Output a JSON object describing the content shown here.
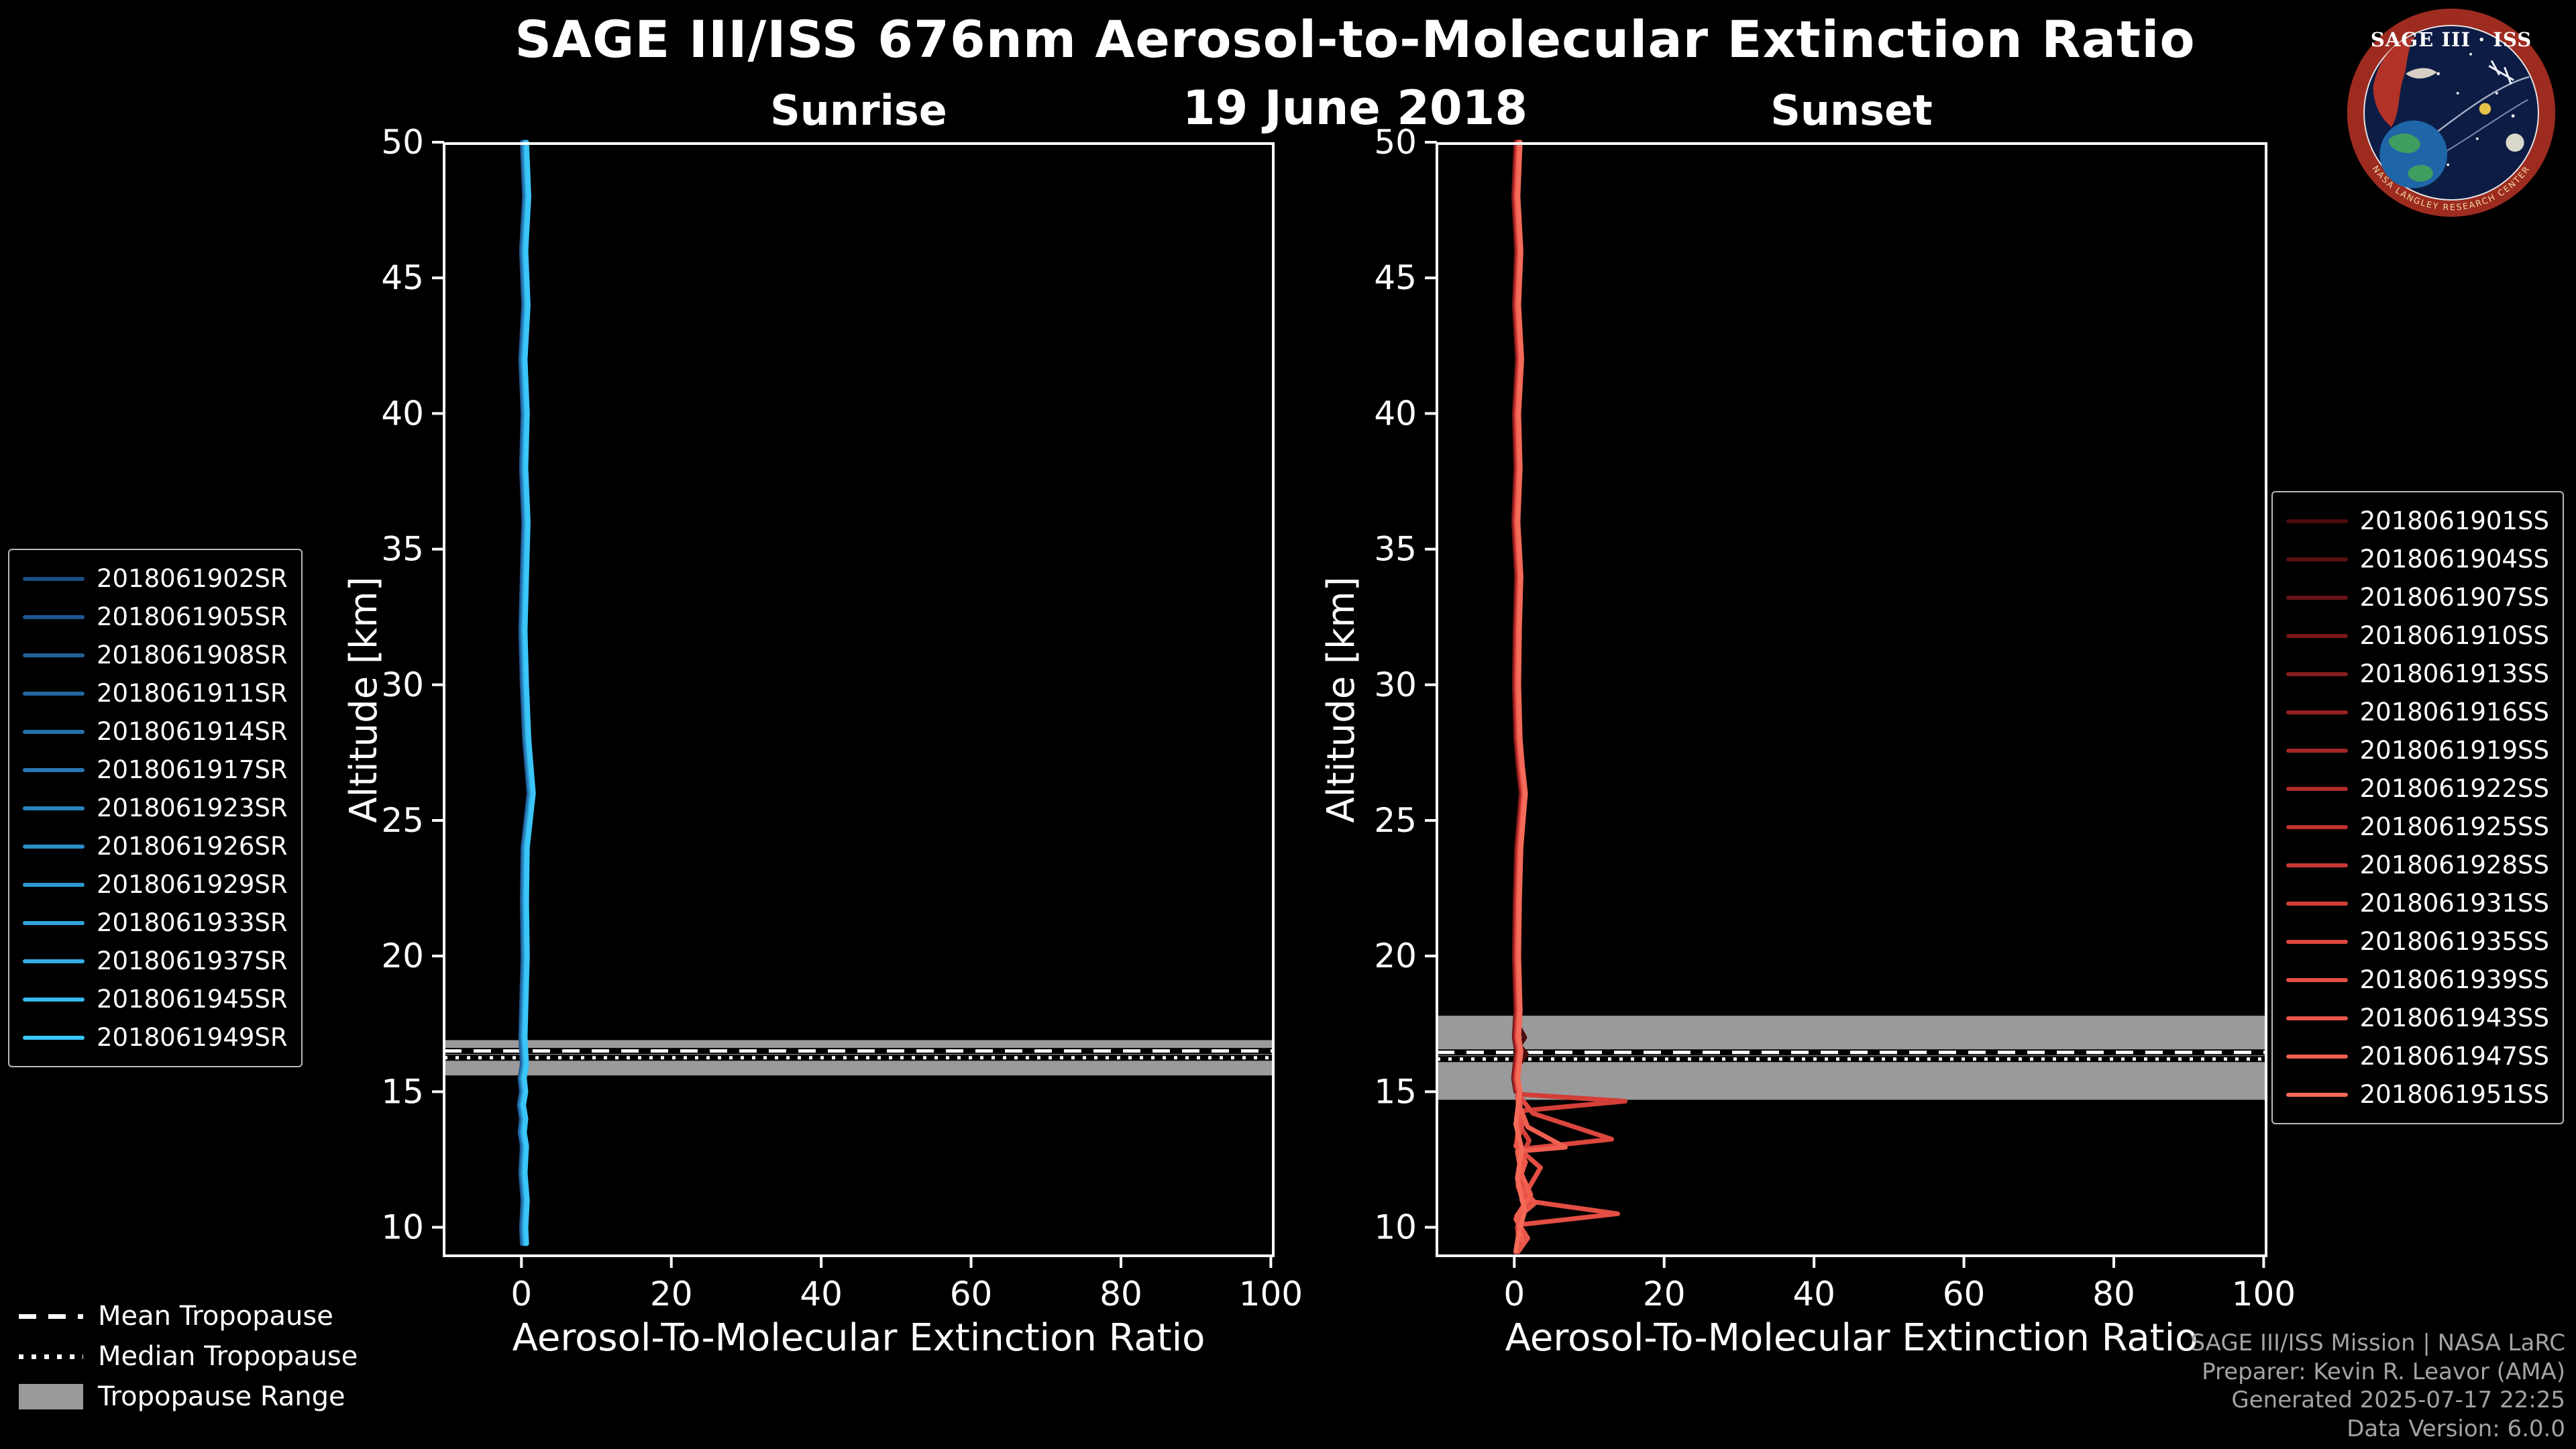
{
  "page": {
    "bg": "#000000",
    "band_color": "#9a9a9a"
  },
  "header": {
    "title": "SAGE III/ISS 676nm Aerosol-to-Molecular Extinction Ratio",
    "date": "19 June 2018"
  },
  "logo": {
    "title": "SAGE III · ISS",
    "ring_text": "NASA LANGLEY RESEARCH CENTER"
  },
  "tropopause_legend": {
    "mean": "Mean Tropopause",
    "median": "Median Tropopause",
    "range": "Tropopause Range"
  },
  "credits": {
    "lines": [
      "SAGE III/ISS Mission | NASA LaRC",
      "Preparer: Kevin R. Leavor (AMA)",
      "Generated 2025-07-17 22:25",
      "Data Version: 6.0.0"
    ]
  },
  "chart_data": [
    {
      "type": "line",
      "id": "sunrise",
      "title": "Sunrise",
      "xlabel": "Aerosol-To-Molecular Extinction Ratio",
      "ylabel": "Altitude [km]",
      "xlim": [
        -10.5,
        100.5
      ],
      "ylim": [
        8.9,
        50
      ],
      "xticks": [
        0,
        20,
        40,
        60,
        80,
        100
      ],
      "yticks": [
        10,
        15,
        20,
        25,
        30,
        35,
        40,
        45,
        50
      ],
      "grid": false,
      "legend_position": "outside-left",
      "alt_grid": [
        50,
        48,
        46,
        44,
        42,
        40,
        38,
        36,
        34,
        32,
        30,
        28,
        27,
        26,
        25,
        24,
        22,
        20,
        18,
        17,
        16,
        15.5,
        15,
        14.5,
        14,
        13.5,
        13,
        12,
        11,
        10,
        9.4
      ],
      "base_x": [
        0.4,
        0.7,
        0.3,
        0.6,
        0.2,
        0.5,
        0.3,
        0.6,
        0.4,
        0.2,
        0.4,
        0.7,
        1.0,
        1.3,
        0.9,
        0.5,
        0.4,
        0.5,
        0.3,
        0.2,
        0.4,
        0.1,
        0.3,
        0.0,
        0.3,
        0.1,
        0.4,
        0.2,
        0.5,
        0.3,
        0.4
      ],
      "tropopause": {
        "range": [
          15.6,
          16.9
        ],
        "mean": 16.5,
        "median": 16.25
      },
      "series": [
        {
          "name": "2018061902SR",
          "color": "#1d4f87",
          "dx": -0.3
        },
        {
          "name": "2018061905SR",
          "color": "#1f578f",
          "dx": -0.25
        },
        {
          "name": "2018061908SR",
          "color": "#215f98",
          "dx": -0.2
        },
        {
          "name": "2018061911SR",
          "color": "#2368a1",
          "dx": -0.15
        },
        {
          "name": "2018061914SR",
          "color": "#2571aa",
          "dx": -0.1
        },
        {
          "name": "2018061917SR",
          "color": "#277ab3",
          "dx": -0.05
        },
        {
          "name": "2018061923SR",
          "color": "#2984bd",
          "dx": 0.0
        },
        {
          "name": "2018061926SR",
          "color": "#2b8ec7",
          "dx": 0.05
        },
        {
          "name": "2018061929SR",
          "color": "#2d98d1",
          "dx": 0.1
        },
        {
          "name": "2018061933SR",
          "color": "#30a3db",
          "dx": 0.15
        },
        {
          "name": "2018061937SR",
          "color": "#33aee5",
          "dx": 0.2
        },
        {
          "name": "2018061945SR",
          "color": "#36baef",
          "dx": 0.25
        },
        {
          "name": "2018061949SR",
          "color": "#3ac6f9",
          "dx": 0.3
        }
      ]
    },
    {
      "type": "line",
      "id": "sunset",
      "title": "Sunset",
      "xlabel": "Aerosol-To-Molecular Extinction Ratio",
      "ylabel": "Altitude [km]",
      "xlim": [
        -10.5,
        100.5
      ],
      "ylim": [
        8.9,
        50
      ],
      "xticks": [
        0,
        20,
        40,
        60,
        80,
        100
      ],
      "yticks": [
        10,
        15,
        20,
        25,
        30,
        35,
        40,
        45,
        50
      ],
      "grid": false,
      "legend_position": "outside-right",
      "alt_grid": [
        50,
        48,
        46,
        44,
        42,
        40,
        38,
        36,
        34,
        32,
        30,
        28,
        27,
        26,
        25,
        24,
        22,
        20,
        18,
        17,
        16.5,
        16,
        15.5,
        15
      ],
      "base_x": [
        0.5,
        0.2,
        0.6,
        0.3,
        0.7,
        0.3,
        0.5,
        0.2,
        0.6,
        0.4,
        0.3,
        0.5,
        0.8,
        1.2,
        0.9,
        0.6,
        0.4,
        0.3,
        0.5,
        0.3,
        0.6,
        0.4,
        0.2,
        0.5
      ],
      "tropopause": {
        "range": [
          14.7,
          17.8
        ],
        "mean": 16.45,
        "median": 16.2
      },
      "series": [
        {
          "name": "2018061901SS",
          "color": "#4a0c0c",
          "x": [
            0.6,
            1.4,
            0.7,
            1.6,
            0.9
          ],
          "y": [
            17.4,
            17.0,
            16.7,
            16.4,
            16.1
          ]
        },
        {
          "name": "2018061904SS",
          "color": "#5a1010",
          "dx": -0.3
        },
        {
          "name": "2018061907SS",
          "color": "#691414",
          "dx": -0.26
        },
        {
          "name": "2018061910SS",
          "color": "#781818",
          "dx": -0.22
        },
        {
          "name": "2018061913SS",
          "color": "#871c1c",
          "dx": -0.18
        },
        {
          "name": "2018061916SS",
          "color": "#962020",
          "dx": -0.13
        },
        {
          "name": "2018061919SS",
          "color": "#a52525",
          "dx": -0.08
        },
        {
          "name": "2018061922SS",
          "color": "#b22b29",
          "dx": -0.04
        },
        {
          "name": "2018061925SS",
          "color": "#bf312e",
          "dx": 0.0
        },
        {
          "name": "2018061928SS",
          "color": "#ca3833",
          "dx": 0.04
        },
        {
          "name": "2018061931SS",
          "color": "#d33f38",
          "dx": 0.08,
          "extra": {
            "x": [
              1.0,
              14.8,
              1.2,
              0.6,
              2.0,
              0.8,
              0.5,
              1.5,
              0.4,
              0.8
            ],
            "y": [
              14.9,
              14.65,
              14.3,
              13.8,
              13.2,
              12.5,
              11.5,
              10.8,
              10.0,
              9.2
            ]
          }
        },
        {
          "name": "2018061935SS",
          "color": "#dc463d",
          "dx": 0.12,
          "extra": {
            "x": [
              0.5,
              2.5,
              13.0,
              1.5,
              0.5,
              2.2,
              0.6,
              1.2
            ],
            "y": [
              14.9,
              14.2,
              13.25,
              12.9,
              12.0,
              11.0,
              10.2,
              9.4
            ]
          }
        },
        {
          "name": "2018061939SS",
          "color": "#e44e43",
          "dx": 0.16,
          "extra": {
            "x": [
              0.4,
              1.2,
              0.2,
              3.5,
              1.0,
              13.8,
              0.8,
              0.4
            ],
            "y": [
              14.8,
              13.9,
              13.0,
              12.2,
              11.0,
              10.5,
              10.1,
              9.3
            ]
          }
        },
        {
          "name": "2018061943SS",
          "color": "#ea5649",
          "dx": 0.2,
          "extra": {
            "x": [
              0.8,
              0.3,
              1.5,
              0.5,
              2.8,
              0.2,
              1.8,
              0.5
            ],
            "y": [
              14.5,
              13.0,
              12.4,
              11.6,
              10.9,
              10.3,
              9.6,
              9.1
            ]
          }
        },
        {
          "name": "2018061947SS",
          "color": "#f05e50",
          "dx": 0.25,
          "extra": {
            "x": [
              0.5,
              1.8,
              6.8,
              0.4,
              0.9,
              2.2,
              0.3,
              1.1
            ],
            "y": [
              14.6,
              13.7,
              12.95,
              12.8,
              12.0,
              11.2,
              10.4,
              9.5
            ]
          }
        },
        {
          "name": "2018061951SS",
          "color": "#f56a58",
          "dx": 0.3,
          "extra": {
            "x": [
              0.6,
              0.2,
              1.0,
              0.4,
              1.4,
              0.6,
              0.2
            ],
            "y": [
              14.7,
              13.8,
              12.9,
              11.8,
              10.6,
              9.8,
              9.1
            ]
          }
        }
      ]
    }
  ]
}
